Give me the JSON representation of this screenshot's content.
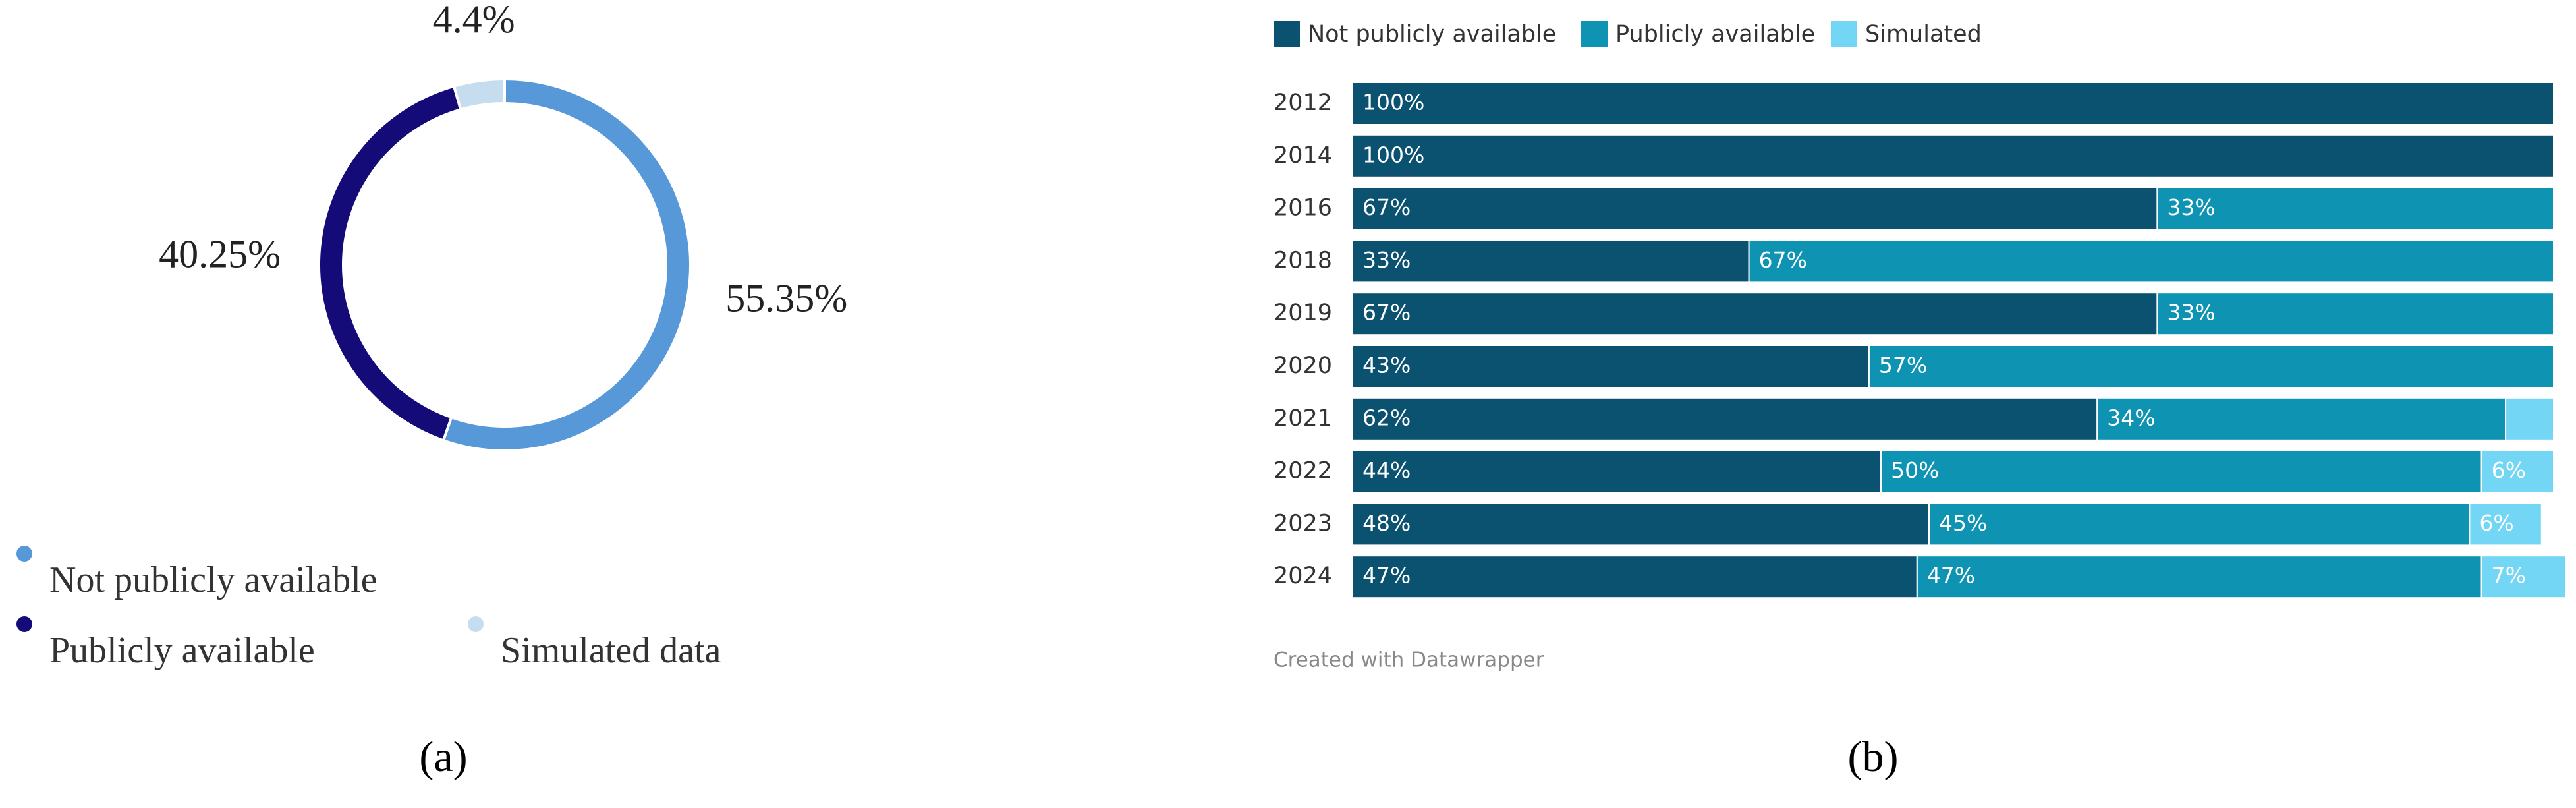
{
  "chart_data": [
    {
      "type": "pie",
      "caption": "(a)",
      "donut": true,
      "categories": [
        "Not publicly available",
        "Publicly available",
        "Simulated data"
      ],
      "values": [
        55.35,
        40.25,
        4.4
      ],
      "value_labels": [
        "55.35%",
        "40.25%",
        "4.4%"
      ],
      "colors": [
        "#5798d9",
        "#140a78",
        "#c6dcef"
      ],
      "legend": "bottom-left"
    },
    {
      "type": "bar",
      "orientation": "horizontal",
      "stacked": true,
      "caption": "(b)",
      "categories": [
        "2012",
        "2014",
        "2016",
        "2018",
        "2019",
        "2020",
        "2021",
        "2022",
        "2023",
        "2024"
      ],
      "series": [
        {
          "name": "Not publicly available",
          "color": "#0b5270",
          "values": [
            100,
            100,
            67,
            33,
            67,
            43,
            62,
            44,
            48,
            47
          ],
          "value_labels": [
            "100%",
            "100%",
            "67%",
            "33%",
            "67%",
            "43%",
            "62%",
            "44%",
            "48%",
            "47%"
          ]
        },
        {
          "name": "Publicly available",
          "color": "#0e93b3",
          "values": [
            null,
            null,
            33,
            67,
            33,
            57,
            34,
            50,
            45,
            47
          ],
          "value_labels": [
            null,
            null,
            "33%",
            "67%",
            "33%",
            "57%",
            "34%",
            "50%",
            "45%",
            "47%"
          ]
        },
        {
          "name": "Simulated",
          "color": "#72d6f4",
          "values": [
            null,
            null,
            null,
            null,
            null,
            null,
            4,
            6,
            6,
            7
          ],
          "value_labels": [
            null,
            null,
            null,
            null,
            null,
            null,
            null,
            "6%",
            "6%",
            "7%"
          ]
        }
      ],
      "xlim": [
        0,
        100
      ],
      "legend": "top-left",
      "footer": "Created with Datawrapper"
    }
  ]
}
